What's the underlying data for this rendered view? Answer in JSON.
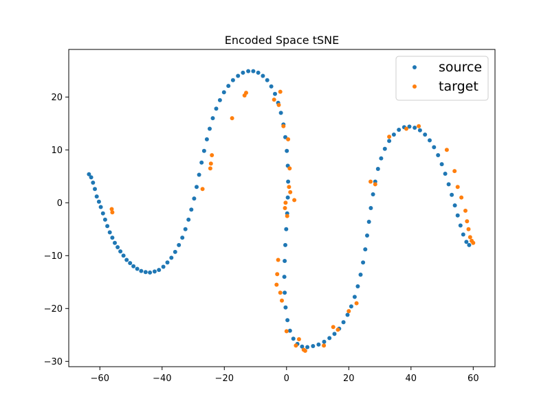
{
  "chart_data": {
    "type": "scatter",
    "title": "Encoded Space tSNE",
    "xlabel": "",
    "ylabel": "",
    "xlim": [
      -70,
      67
    ],
    "ylim": [
      -31,
      29
    ],
    "xticks": [
      -60,
      -40,
      -20,
      0,
      20,
      40,
      60
    ],
    "yticks": [
      -30,
      -20,
      -10,
      0,
      10,
      20
    ],
    "xtick_labels": [
      "−60",
      "−40",
      "−20",
      "0",
      "20",
      "40",
      "60"
    ],
    "ytick_labels": [
      "−30",
      "−20",
      "−10",
      "0",
      "10",
      "20"
    ],
    "grid": false,
    "legend_position": "top-right",
    "colors": {
      "source": "#1f77b4",
      "target": "#ff7f0e"
    },
    "series": [
      {
        "name": "source",
        "color": "#1f77b4",
        "points": [
          [
            -63.5,
            5.4
          ],
          [
            -62.8,
            4.8
          ],
          [
            -62.2,
            3.8
          ],
          [
            -61.6,
            2.6
          ],
          [
            -61.0,
            1.2
          ],
          [
            -60.3,
            0.2
          ],
          [
            -59.7,
            -0.8
          ],
          [
            -59.0,
            -2.0
          ],
          [
            -58.3,
            -3.2
          ],
          [
            -57.6,
            -4.4
          ],
          [
            -56.8,
            -5.6
          ],
          [
            -56.0,
            -6.6
          ],
          [
            -55.2,
            -7.6
          ],
          [
            -54.3,
            -8.4
          ],
          [
            -53.4,
            -9.2
          ],
          [
            -52.4,
            -10.0
          ],
          [
            -51.4,
            -10.8
          ],
          [
            -50.3,
            -11.4
          ],
          [
            -49.2,
            -12.0
          ],
          [
            -48.0,
            -12.5
          ],
          [
            -46.7,
            -12.9
          ],
          [
            -45.3,
            -13.1
          ],
          [
            -43.9,
            -13.2
          ],
          [
            -42.4,
            -13.0
          ],
          [
            -41.0,
            -12.7
          ],
          [
            -39.6,
            -12.1
          ],
          [
            -38.3,
            -11.3
          ],
          [
            -37.0,
            -10.4
          ],
          [
            -35.8,
            -9.3
          ],
          [
            -34.6,
            -8.0
          ],
          [
            -33.5,
            -6.6
          ],
          [
            -32.5,
            -5.0
          ],
          [
            -31.5,
            -3.2
          ],
          [
            -30.6,
            -1.3
          ],
          [
            -29.7,
            0.8
          ],
          [
            -28.9,
            3.0
          ],
          [
            -28.1,
            5.3
          ],
          [
            -27.3,
            7.6
          ],
          [
            -26.5,
            9.8
          ],
          [
            -25.6,
            12.0
          ],
          [
            -24.7,
            14.0
          ],
          [
            -23.7,
            16.0
          ],
          [
            -22.6,
            17.8
          ],
          [
            -21.4,
            19.4
          ],
          [
            -20.1,
            20.9
          ],
          [
            -18.7,
            22.1
          ],
          [
            -17.2,
            23.2
          ],
          [
            -15.6,
            24.0
          ],
          [
            -14.0,
            24.6
          ],
          [
            -12.3,
            24.9
          ],
          [
            -10.7,
            24.9
          ],
          [
            -9.1,
            24.6
          ],
          [
            -7.6,
            24.0
          ],
          [
            -6.2,
            23.2
          ],
          [
            -4.9,
            22.0
          ],
          [
            -3.7,
            20.6
          ],
          [
            -2.7,
            18.9
          ],
          [
            -1.8,
            17.0
          ],
          [
            -1.0,
            14.8
          ],
          [
            -0.4,
            12.4
          ],
          [
            0.1,
            9.8
          ],
          [
            0.4,
            7.0
          ],
          [
            0.5,
            4.0
          ],
          [
            0.4,
            1.0
          ],
          [
            0.2,
            -2.0
          ],
          [
            -0.1,
            -5.0
          ],
          [
            -0.4,
            -8.0
          ],
          [
            -0.6,
            -11.0
          ],
          [
            -0.7,
            -14.0
          ],
          [
            -0.6,
            -17.0
          ],
          [
            -0.3,
            -19.8
          ],
          [
            0.3,
            -22.2
          ],
          [
            1.1,
            -24.2
          ],
          [
            2.2,
            -25.7
          ],
          [
            3.5,
            -26.7
          ],
          [
            5.0,
            -27.2
          ],
          [
            6.7,
            -27.3
          ],
          [
            8.5,
            -27.1
          ],
          [
            10.3,
            -26.8
          ],
          [
            12.1,
            -26.3
          ],
          [
            13.8,
            -25.6
          ],
          [
            15.4,
            -24.8
          ],
          [
            16.9,
            -23.8
          ],
          [
            18.3,
            -22.6
          ],
          [
            19.6,
            -21.2
          ],
          [
            20.8,
            -19.6
          ],
          [
            21.9,
            -17.8
          ],
          [
            22.9,
            -15.8
          ],
          [
            23.8,
            -13.6
          ],
          [
            24.6,
            -11.3
          ],
          [
            25.3,
            -8.8
          ],
          [
            25.9,
            -6.2
          ],
          [
            26.5,
            -3.6
          ],
          [
            27.1,
            -1.0
          ],
          [
            27.8,
            1.6
          ],
          [
            28.5,
            4.0
          ],
          [
            29.4,
            6.4
          ],
          [
            30.4,
            8.4
          ],
          [
            31.6,
            10.2
          ],
          [
            33.0,
            11.7
          ],
          [
            34.5,
            12.9
          ],
          [
            36.1,
            13.8
          ],
          [
            37.8,
            14.3
          ],
          [
            39.5,
            14.4
          ],
          [
            41.2,
            14.2
          ],
          [
            42.9,
            13.7
          ],
          [
            44.5,
            12.9
          ],
          [
            46.0,
            11.8
          ],
          [
            47.4,
            10.5
          ],
          [
            48.7,
            9.0
          ],
          [
            49.9,
            7.3
          ],
          [
            51.0,
            5.5
          ],
          [
            52.1,
            3.5
          ],
          [
            53.1,
            1.5
          ],
          [
            54.1,
            -0.5
          ],
          [
            55.0,
            -2.4
          ],
          [
            55.9,
            -4.3
          ],
          [
            56.8,
            -6.0
          ],
          [
            57.8,
            -7.4
          ],
          [
            58.7,
            -8.0
          ]
        ]
      },
      {
        "name": "target",
        "color": "#ff7f0e",
        "points": [
          [
            -56.2,
            -1.2
          ],
          [
            -56.0,
            -1.8
          ],
          [
            -27.0,
            2.6
          ],
          [
            -24.5,
            6.5
          ],
          [
            -24.3,
            7.4
          ],
          [
            -24.0,
            9.0
          ],
          [
            -17.5,
            16.0
          ],
          [
            -13.5,
            20.3
          ],
          [
            -13.0,
            20.8
          ],
          [
            -4.0,
            19.5
          ],
          [
            -2.5,
            18.5
          ],
          [
            -2.0,
            21.0
          ],
          [
            -1.0,
            14.5
          ],
          [
            0.5,
            12.0
          ],
          [
            1.0,
            6.5
          ],
          [
            0.8,
            3.0
          ],
          [
            1.2,
            2.0
          ],
          [
            -0.3,
            0.0
          ],
          [
            -0.5,
            -1.0
          ],
          [
            0.2,
            -2.5
          ],
          [
            2.5,
            0.5
          ],
          [
            -2.7,
            -10.8
          ],
          [
            -3.0,
            -13.5
          ],
          [
            -3.2,
            -15.5
          ],
          [
            -2.0,
            -17.0
          ],
          [
            -1.5,
            -18.5
          ],
          [
            0.0,
            -24.3
          ],
          [
            3.0,
            -27.0
          ],
          [
            4.0,
            -25.8
          ],
          [
            5.5,
            -27.8
          ],
          [
            6.0,
            -28.0
          ],
          [
            12.0,
            -27.0
          ],
          [
            15.0,
            -23.5
          ],
          [
            16.5,
            -24.0
          ],
          [
            20.0,
            -20.5
          ],
          [
            22.5,
            -19.0
          ],
          [
            27.0,
            4.0
          ],
          [
            28.5,
            3.5
          ],
          [
            33.0,
            12.5
          ],
          [
            38.5,
            14.0
          ],
          [
            42.5,
            14.5
          ],
          [
            51.5,
            10.0
          ],
          [
            54.0,
            6.0
          ],
          [
            55.0,
            3.0
          ],
          [
            56.2,
            1.0
          ],
          [
            57.5,
            -1.5
          ],
          [
            58.0,
            -3.5
          ],
          [
            58.5,
            -5.0
          ],
          [
            59.0,
            -6.5
          ],
          [
            59.5,
            -7.2
          ],
          [
            60.0,
            -7.6
          ]
        ]
      }
    ]
  },
  "legend": {
    "items": [
      {
        "label": "source",
        "color": "#1f77b4"
      },
      {
        "label": "target",
        "color": "#ff7f0e"
      }
    ]
  }
}
